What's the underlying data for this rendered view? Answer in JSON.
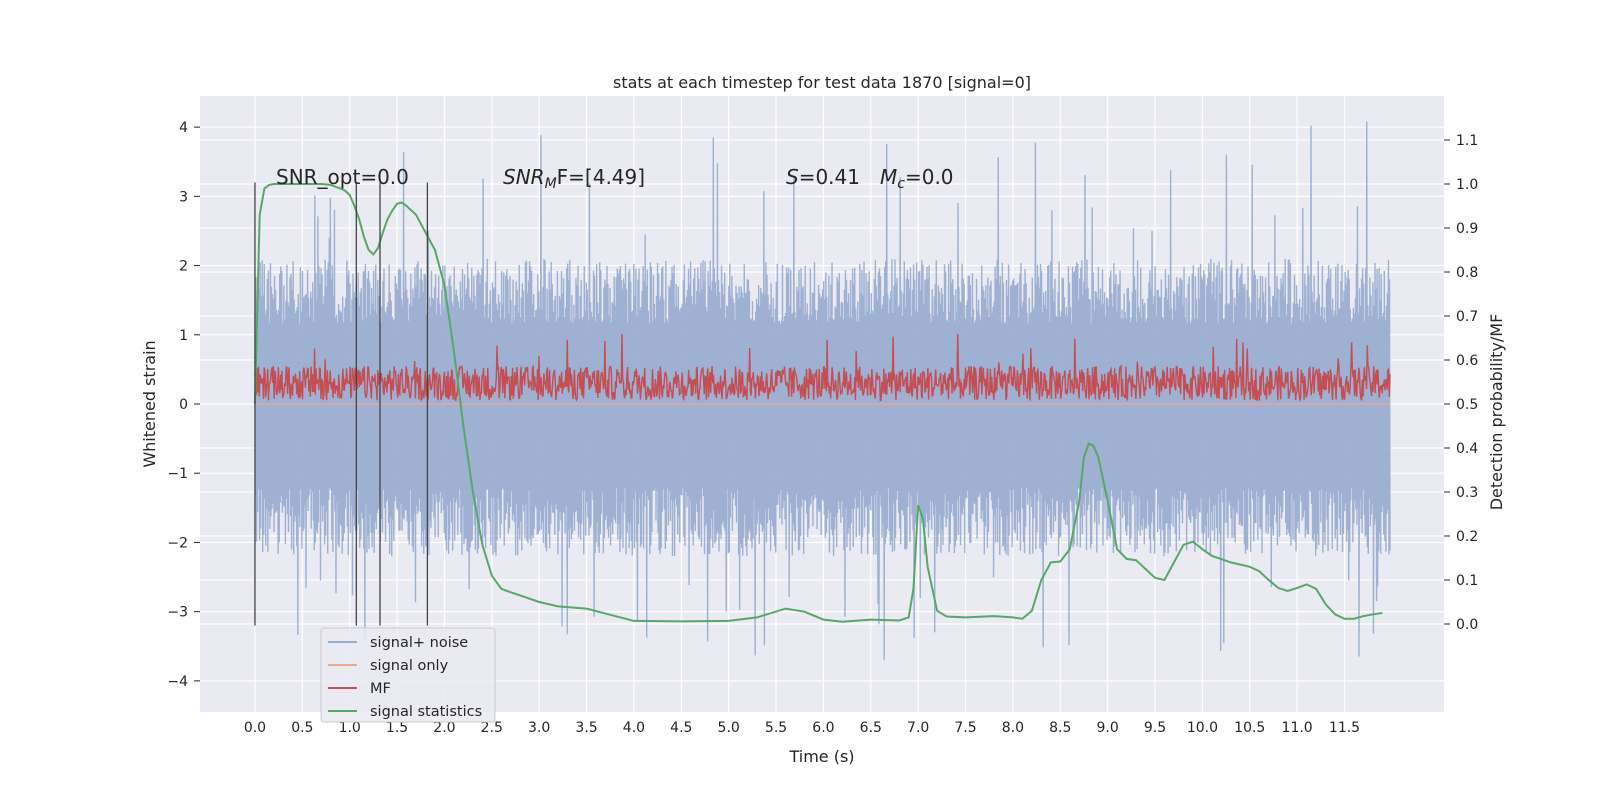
{
  "chart_data": {
    "type": "line",
    "title": "stats at each timestep for test data 1870 [signal=0]",
    "xlabel": "Time (s)",
    "ylabel_left": "Whitened strain",
    "ylabel_right": "Detection probability/MF",
    "xlim": [
      -0.58,
      12.55
    ],
    "ylim_left": [
      -4.45,
      4.45
    ],
    "ylim_right": [
      -0.2,
      1.2
    ],
    "x_ticks": [
      "0.0",
      "0.5",
      "1.0",
      "1.5",
      "2.0",
      "2.5",
      "3.0",
      "3.5",
      "4.0",
      "4.5",
      "5.0",
      "5.5",
      "6.0",
      "6.5",
      "7.0",
      "7.5",
      "8.0",
      "8.5",
      "9.0",
      "9.5",
      "10.0",
      "10.5",
      "11.0",
      "11.5"
    ],
    "y_ticks_left": [
      "4",
      "3",
      "2",
      "1",
      "0",
      "−1",
      "−2",
      "−3",
      "−4"
    ],
    "y_ticks_left_values": [
      4,
      3,
      2,
      1,
      0,
      -1,
      -2,
      -3,
      -4
    ],
    "y_ticks_right": [
      "1.1",
      "1.0",
      "0.9",
      "0.8",
      "0.7",
      "0.6",
      "0.5",
      "0.4",
      "0.3",
      "0.2",
      "0.1",
      "0.0"
    ],
    "y_ticks_right_values": [
      1.1,
      1.0,
      0.9,
      0.8,
      0.7,
      0.6,
      0.5,
      0.4,
      0.3,
      0.2,
      0.1,
      0.0
    ],
    "grid": true,
    "legend_position": "lower-left",
    "vertical_lines": [
      {
        "x": 0.0,
        "ymin": -3.2,
        "ymax": 3.2
      },
      {
        "x": 1.07,
        "ymin": -3.2,
        "ymax": 3.2
      },
      {
        "x": 1.32,
        "ymin": -3.2,
        "ymax": 3.2
      },
      {
        "x": 1.82,
        "ymin": -3.2,
        "ymax": 3.2
      }
    ],
    "annotations": {
      "snr_opt": "SNR_opt=0.0",
      "snr_mf_main": "SNR",
      "snr_mf_sub": "M",
      "snr_mf_rest": "F=[4.49]",
      "s_main": "S",
      "s_rest": "=0.41",
      "mc_main": "M",
      "mc_sub": "c",
      "mc_rest": "=0.0"
    },
    "series": [
      {
        "name": "signal+ noise",
        "color": "#9aaed1",
        "axis": "left",
        "x_range": [
          0.0,
          11.98
        ],
        "envelope": {
          "typical_upper": 2.1,
          "typical_lower": -2.2,
          "max": 4.08,
          "min": -3.72
        }
      },
      {
        "name": "signal only",
        "color": "#e8a990",
        "axis": "left",
        "x": [
          0.0,
          11.98
        ],
        "y": [
          0.0,
          0.0
        ]
      },
      {
        "name": "MF",
        "color": "#c44e52",
        "axis": "left",
        "x_range": [
          0.0,
          11.98
        ],
        "envelope": {
          "typical_upper": 0.55,
          "typical_lower": 0.05,
          "max": 1.02,
          "min": -0.02
        }
      },
      {
        "name": "signal statistics",
        "color": "#55a868",
        "axis": "right",
        "x": [
          0.0,
          0.05,
          0.1,
          0.15,
          0.2,
          0.3,
          0.5,
          0.7,
          0.8,
          0.9,
          0.95,
          1.0,
          1.05,
          1.1,
          1.15,
          1.2,
          1.25,
          1.3,
          1.35,
          1.4,
          1.45,
          1.5,
          1.55,
          1.6,
          1.7,
          1.8,
          1.9,
          2.0,
          2.1,
          2.2,
          2.3,
          2.4,
          2.5,
          2.6,
          2.7,
          2.8,
          3.0,
          3.2,
          3.5,
          4.0,
          4.5,
          5.0,
          5.3,
          5.6,
          5.8,
          6.0,
          6.2,
          6.5,
          6.8,
          6.9,
          6.95,
          7.0,
          7.05,
          7.1,
          7.2,
          7.3,
          7.5,
          7.8,
          8.0,
          8.1,
          8.2,
          8.3,
          8.4,
          8.5,
          8.6,
          8.7,
          8.75,
          8.8,
          8.85,
          8.9,
          8.95,
          9.0,
          9.1,
          9.2,
          9.3,
          9.4,
          9.5,
          9.6,
          9.7,
          9.8,
          9.9,
          10.0,
          10.1,
          10.3,
          10.5,
          10.6,
          10.7,
          10.8,
          10.9,
          11.0,
          11.1,
          11.2,
          11.3,
          11.4,
          11.5,
          11.6,
          11.7,
          11.8,
          11.9
        ],
        "y": [
          0.5,
          0.93,
          0.99,
          0.998,
          1.0,
          1.0,
          1.0,
          1.0,
          0.998,
          0.99,
          0.985,
          0.975,
          0.95,
          0.92,
          0.88,
          0.85,
          0.84,
          0.855,
          0.89,
          0.92,
          0.94,
          0.955,
          0.958,
          0.95,
          0.93,
          0.89,
          0.85,
          0.77,
          0.62,
          0.45,
          0.3,
          0.18,
          0.11,
          0.08,
          0.072,
          0.065,
          0.05,
          0.04,
          0.035,
          0.007,
          0.006,
          0.007,
          0.015,
          0.035,
          0.028,
          0.01,
          0.005,
          0.01,
          0.008,
          0.015,
          0.08,
          0.27,
          0.24,
          0.13,
          0.03,
          0.017,
          0.015,
          0.018,
          0.015,
          0.012,
          0.03,
          0.1,
          0.14,
          0.142,
          0.17,
          0.28,
          0.38,
          0.41,
          0.405,
          0.38,
          0.33,
          0.28,
          0.17,
          0.148,
          0.145,
          0.125,
          0.105,
          0.1,
          0.14,
          0.18,
          0.187,
          0.17,
          0.155,
          0.14,
          0.13,
          0.12,
          0.1,
          0.082,
          0.075,
          0.082,
          0.09,
          0.08,
          0.045,
          0.022,
          0.012,
          0.012,
          0.018,
          0.022,
          0.025
        ]
      }
    ]
  }
}
